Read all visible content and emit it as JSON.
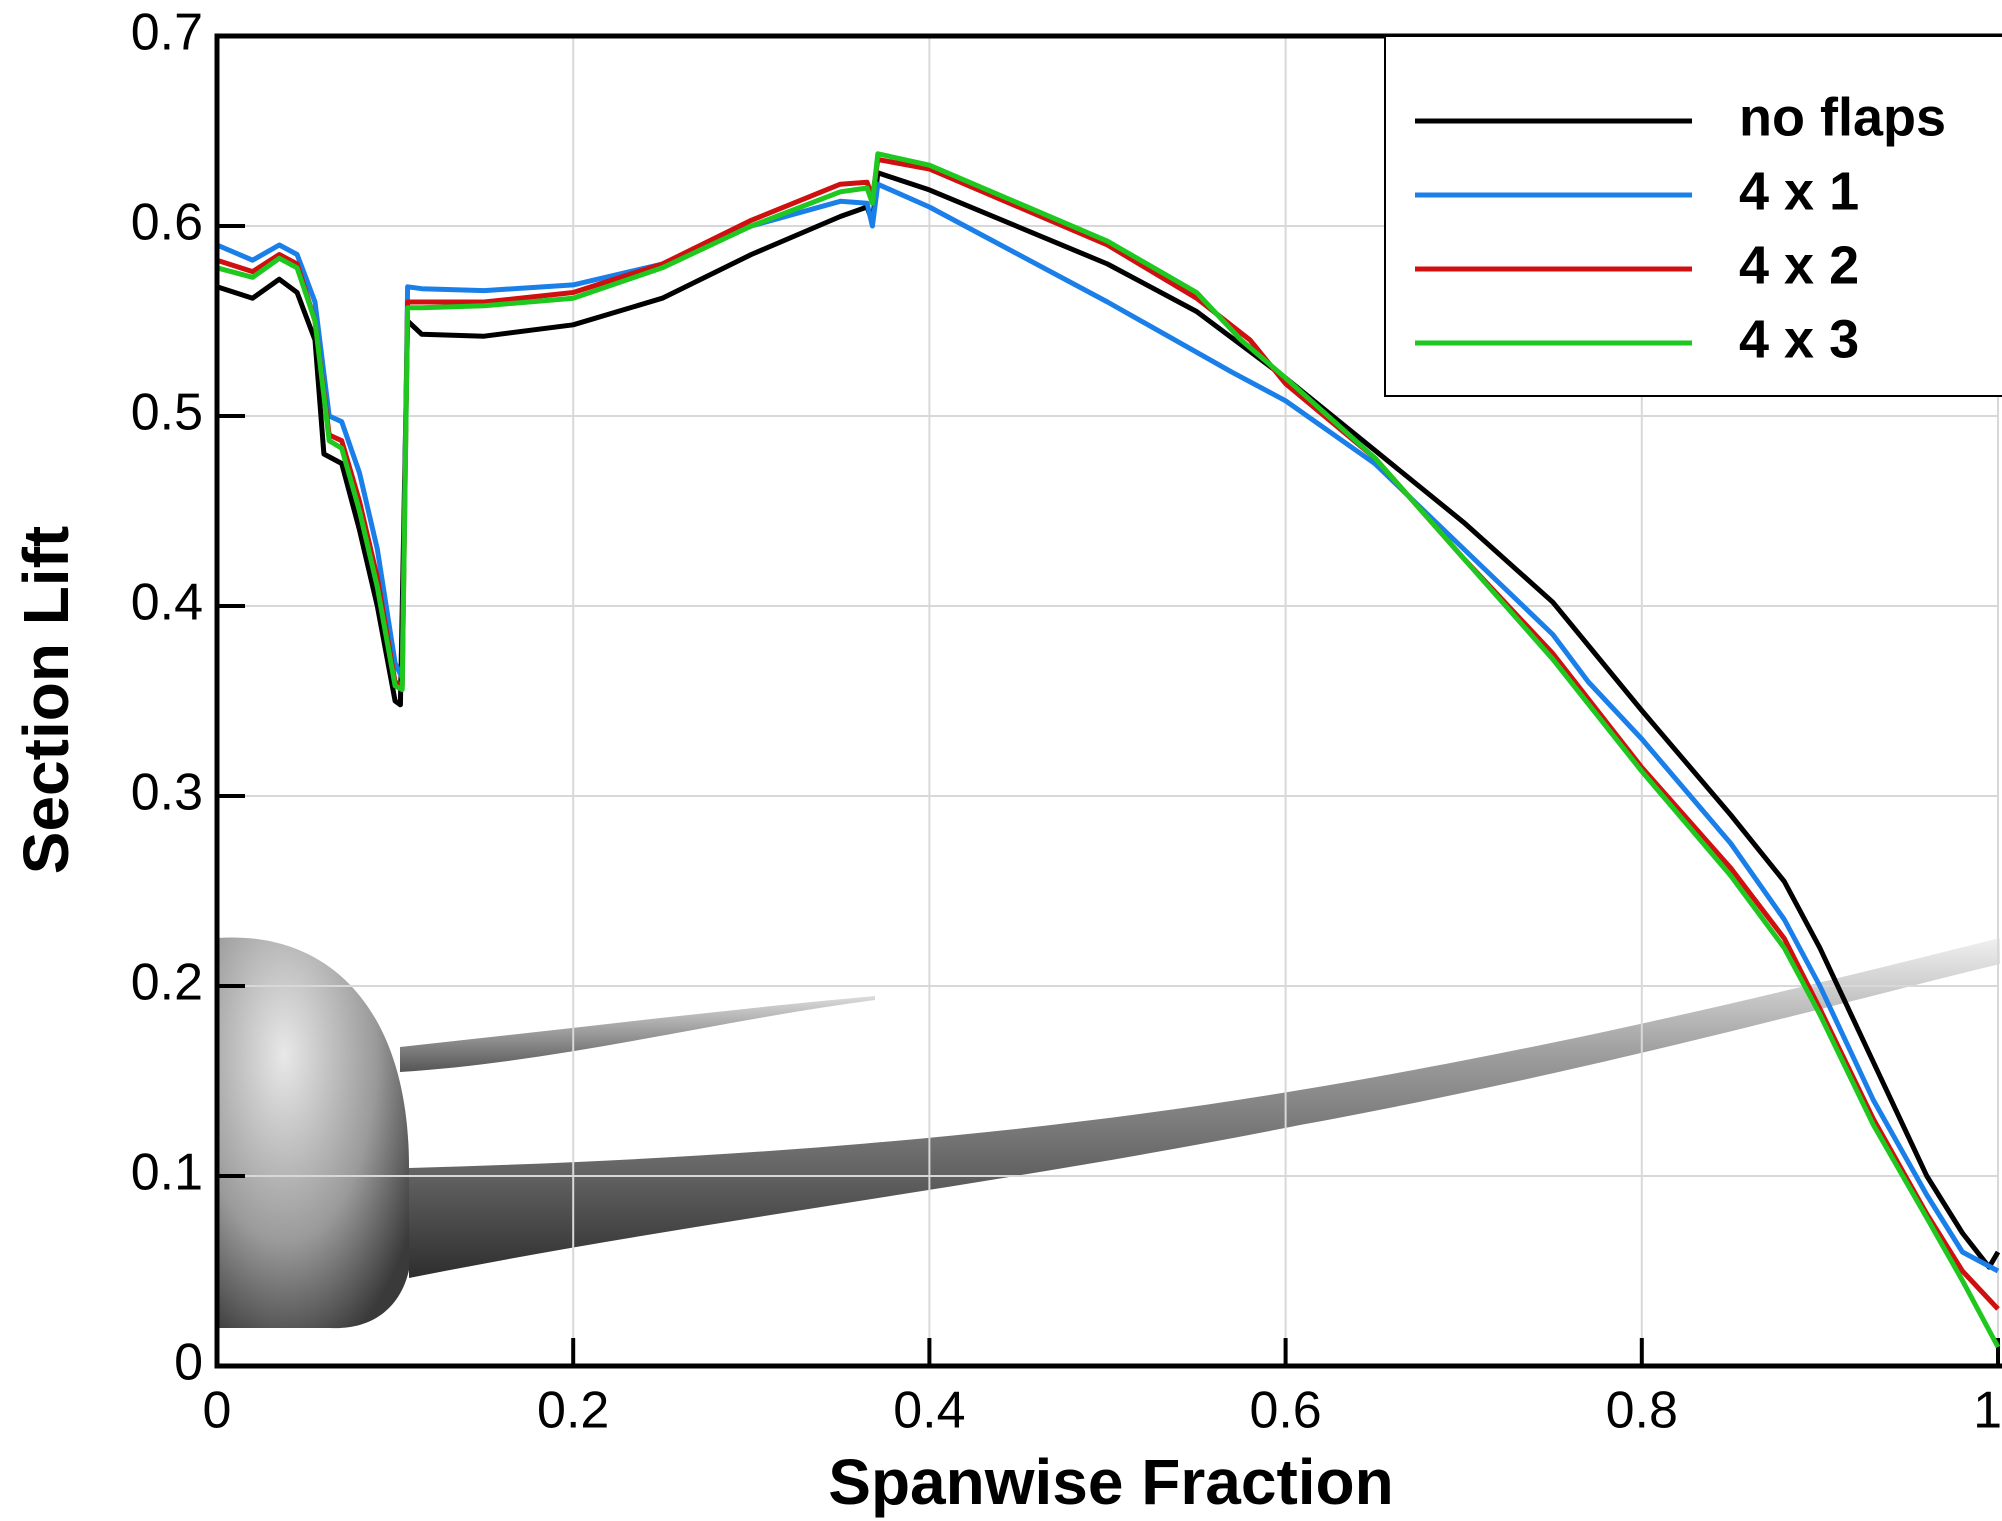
{
  "chart_data": {
    "type": "line",
    "xlabel": "Spanwise Fraction",
    "ylabel": "Section Lift",
    "xlim": [
      0,
      1
    ],
    "ylim": [
      0,
      0.7
    ],
    "xticks": [
      0,
      0.2,
      0.4,
      0.6,
      0.8,
      1
    ],
    "yticks": [
      0,
      0.1,
      0.2,
      0.3,
      0.4,
      0.5,
      0.6,
      0.7
    ],
    "grid": true,
    "legend": "upper right",
    "series": [
      {
        "name": "no flaps",
        "color": "#000000",
        "x": [
          0,
          0.02,
          0.035,
          0.045,
          0.055,
          0.06,
          0.07,
          0.08,
          0.09,
          0.1,
          0.103,
          0.107,
          0.115,
          0.15,
          0.2,
          0.25,
          0.3,
          0.35,
          0.365,
          0.368,
          0.371,
          0.4,
          0.5,
          0.55,
          0.6,
          0.65,
          0.7,
          0.75,
          0.8,
          0.85,
          0.88,
          0.9,
          0.93,
          0.96,
          0.98,
          0.995,
          1
        ],
        "values": [
          0.568,
          0.562,
          0.572,
          0.565,
          0.54,
          0.48,
          0.475,
          0.44,
          0.4,
          0.35,
          0.348,
          0.55,
          0.543,
          0.542,
          0.548,
          0.562,
          0.585,
          0.605,
          0.61,
          0.602,
          0.628,
          0.619,
          0.58,
          0.555,
          0.52,
          0.482,
          0.444,
          0.402,
          0.345,
          0.29,
          0.255,
          0.22,
          0.16,
          0.1,
          0.07,
          0.052,
          0.06
        ]
      },
      {
        "name": "4 x 1",
        "color": "#1a7fe8",
        "x": [
          0,
          0.02,
          0.035,
          0.045,
          0.055,
          0.063,
          0.07,
          0.08,
          0.09,
          0.1,
          0.104,
          0.107,
          0.115,
          0.15,
          0.2,
          0.25,
          0.3,
          0.35,
          0.365,
          0.368,
          0.371,
          0.4,
          0.5,
          0.57,
          0.6,
          0.65,
          0.7,
          0.75,
          0.77,
          0.8,
          0.85,
          0.88,
          0.9,
          0.93,
          0.96,
          0.98,
          1
        ],
        "values": [
          0.59,
          0.582,
          0.59,
          0.585,
          0.56,
          0.5,
          0.497,
          0.47,
          0.43,
          0.37,
          0.362,
          0.568,
          0.567,
          0.566,
          0.569,
          0.58,
          0.6,
          0.613,
          0.612,
          0.6,
          0.622,
          0.61,
          0.56,
          0.523,
          0.508,
          0.475,
          0.43,
          0.385,
          0.36,
          0.33,
          0.275,
          0.235,
          0.2,
          0.14,
          0.09,
          0.06,
          0.05
        ]
      },
      {
        "name": "4 x 2",
        "color": "#d01010",
        "x": [
          0,
          0.02,
          0.035,
          0.045,
          0.055,
          0.063,
          0.07,
          0.08,
          0.09,
          0.1,
          0.104,
          0.107,
          0.115,
          0.15,
          0.2,
          0.25,
          0.3,
          0.35,
          0.365,
          0.368,
          0.371,
          0.4,
          0.5,
          0.55,
          0.58,
          0.6,
          0.65,
          0.7,
          0.75,
          0.8,
          0.85,
          0.88,
          0.9,
          0.93,
          0.96,
          0.98,
          1
        ],
        "values": [
          0.582,
          0.576,
          0.585,
          0.58,
          0.55,
          0.49,
          0.487,
          0.455,
          0.415,
          0.36,
          0.358,
          0.56,
          0.56,
          0.56,
          0.565,
          0.58,
          0.603,
          0.622,
          0.623,
          0.615,
          0.635,
          0.63,
          0.59,
          0.562,
          0.54,
          0.517,
          0.478,
          0.425,
          0.375,
          0.315,
          0.262,
          0.225,
          0.188,
          0.13,
          0.08,
          0.05,
          0.03
        ]
      },
      {
        "name": "4 x 3",
        "color": "#1ec81e",
        "x": [
          0,
          0.02,
          0.035,
          0.045,
          0.055,
          0.063,
          0.07,
          0.08,
          0.09,
          0.1,
          0.104,
          0.107,
          0.115,
          0.15,
          0.2,
          0.25,
          0.3,
          0.35,
          0.365,
          0.368,
          0.371,
          0.4,
          0.5,
          0.55,
          0.575,
          0.6,
          0.65,
          0.7,
          0.75,
          0.8,
          0.85,
          0.88,
          0.9,
          0.93,
          0.96,
          0.98,
          1
        ],
        "values": [
          0.578,
          0.573,
          0.583,
          0.578,
          0.55,
          0.487,
          0.483,
          0.45,
          0.41,
          0.358,
          0.356,
          0.557,
          0.557,
          0.558,
          0.562,
          0.578,
          0.6,
          0.618,
          0.62,
          0.612,
          0.638,
          0.632,
          0.592,
          0.565,
          0.54,
          0.52,
          0.478,
          0.425,
          0.372,
          0.313,
          0.258,
          0.22,
          0.185,
          0.127,
          0.078,
          0.045,
          0.01
        ]
      }
    ]
  }
}
